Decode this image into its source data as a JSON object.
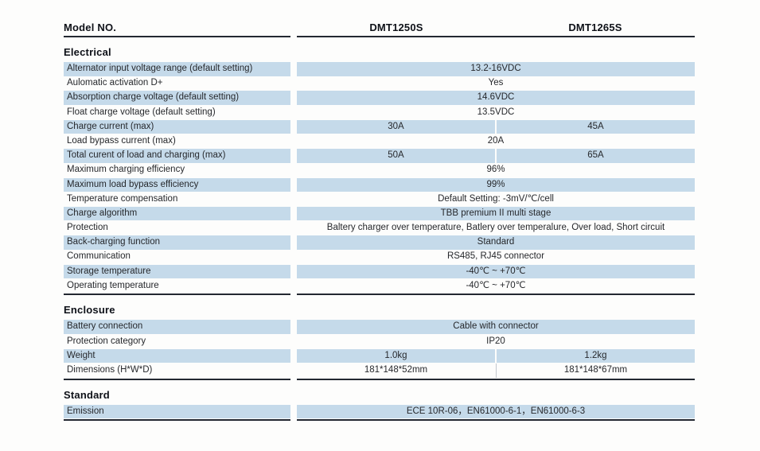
{
  "colors": {
    "row_shade": "#c5daea",
    "rule": "#232831"
  },
  "header": {
    "model_label": "Model NO.",
    "col1": "DMT1250S",
    "col2": "DMT1265S"
  },
  "sections": [
    {
      "title": "Electrical",
      "rows": [
        {
          "label": "Alternator input voltage range (default setting)",
          "value": "13.2-16VDC",
          "shaded": true
        },
        {
          "label": "Aulomatic activation D+",
          "value": "Yes",
          "shaded": false
        },
        {
          "label": "Absorption charge voltage (default setting)",
          "value": "14.6VDC",
          "shaded": true
        },
        {
          "label": "Float charge voltage (default setting)",
          "value": "13.5VDC",
          "shaded": false
        },
        {
          "label": "Charge current (max)",
          "v1": "30A",
          "v2": "45A",
          "split": true,
          "shaded": true
        },
        {
          "label": "Load bypass current (max)",
          "value": "20A",
          "shaded": false
        },
        {
          "label": "Total curent of load and charging (max)",
          "v1": "50A",
          "v2": "65A",
          "split": true,
          "shaded": true
        },
        {
          "label": "Maximum charging efficiency",
          "value": "96%",
          "shaded": false
        },
        {
          "label": "Maximum load bypass efficiency",
          "value": "99%",
          "shaded": true
        },
        {
          "label": "Temperature compensation",
          "value": "Default Setting: -3mV/℃/cell",
          "shaded": false
        },
        {
          "label": "Charge algorithm",
          "value": "TBB premium II multi stage",
          "shaded": true
        },
        {
          "label": "Protection",
          "value": "Baltery charger over temperature, Batlery over temperalure, Over load, Short circuit",
          "shaded": false
        },
        {
          "label": "Back-charging function",
          "value": "Standard",
          "shaded": true
        },
        {
          "label": "Communication",
          "value": "RS485, RJ45 connector",
          "shaded": false
        },
        {
          "label": "Storage temperature",
          "value": "-40℃ ~ +70℃",
          "shaded": true
        },
        {
          "label": "Operating temperature",
          "value": "-40℃ ~ +70℃",
          "shaded": false
        }
      ]
    },
    {
      "title": "Enclosure",
      "rows": [
        {
          "label": "Battery connection",
          "value": "Cable with connector",
          "shaded": true
        },
        {
          "label": "Protection category",
          "value": "IP20",
          "shaded": false
        },
        {
          "label": "Weight",
          "v1": "1.0kg",
          "v2": "1.2kg",
          "split": true,
          "shaded": true
        },
        {
          "label": "Dimensions (H*W*D)",
          "v1": "181*148*52mm",
          "v2": "181*148*67mm",
          "split": true,
          "shaded": false
        }
      ]
    },
    {
      "title": "Standard",
      "rows": [
        {
          "label": "Emission",
          "value": "ECE 10R-06，EN61000-6-1，EN61000-6-3",
          "shaded": true
        }
      ]
    }
  ]
}
